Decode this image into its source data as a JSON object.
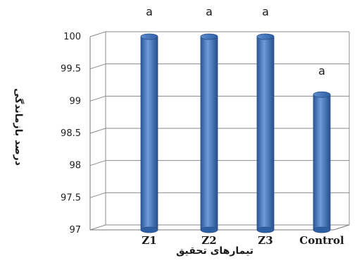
{
  "chart_data": {
    "type": "bar",
    "categories": [
      "Z1",
      "Z2",
      "Z3",
      "Control"
    ],
    "values": [
      100,
      100,
      100,
      99.1
    ],
    "annotations": [
      "a",
      "a",
      "a",
      "a"
    ],
    "xlabel": "تیمارهای تحقیق",
    "ylabel": "درصد بازماندگی",
    "ylim": [
      97,
      100
    ],
    "yticks": [
      "97",
      "97.5",
      "98",
      "98.5",
      "99",
      "99.5",
      "100"
    ],
    "grid": true,
    "bar_color": "#3d6db8"
  }
}
